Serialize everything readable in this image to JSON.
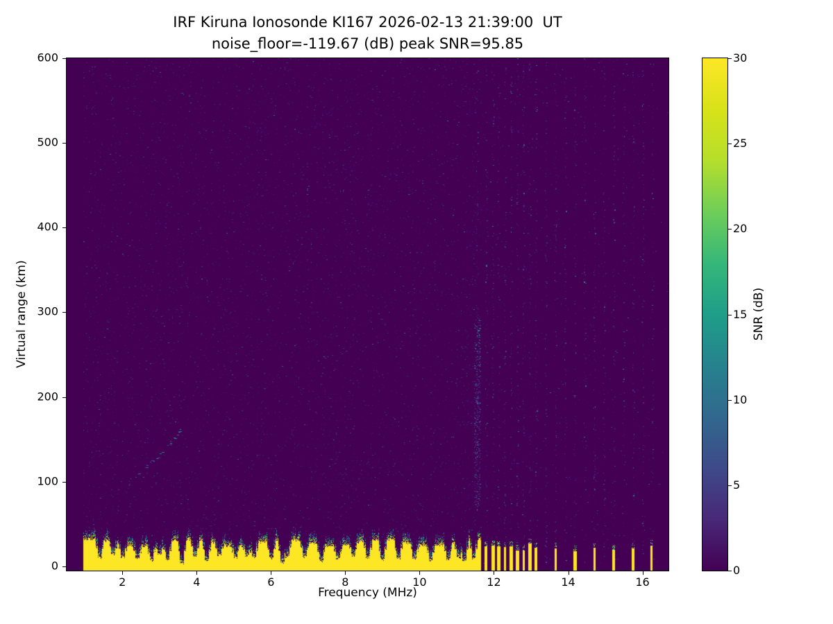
{
  "colors": {
    "background": "#ffffff",
    "text": "#000000",
    "axis": "#000000"
  },
  "chart_data": {
    "type": "heatmap",
    "title": "IRF Kiruna Ionosonde KI167 2026-02-13 21:39:00  UT",
    "subtitle": "noise_floor=-119.67 (dB) peak SNR=95.85",
    "station": "IRF Kiruna Ionosonde KI167",
    "timestamp_ut": "2026-02-13 21:39:00",
    "noise_floor_db": -119.67,
    "peak_snr_db": 95.85,
    "xlabel": "Frequency (MHz)",
    "ylabel": "Virtual range (km)",
    "xlim": [
      0.5,
      16.7
    ],
    "ylim": [
      -5,
      600
    ],
    "xticks": [
      2,
      4,
      6,
      8,
      10,
      12,
      14,
      16
    ],
    "yticks": [
      0,
      100,
      200,
      300,
      400,
      500,
      600
    ],
    "colorbar": {
      "label": "SNR (dB)",
      "ticks": [
        0,
        5,
        10,
        15,
        20,
        25,
        30
      ],
      "vmin": 0,
      "vmax": 30,
      "colormap": "viridis"
    },
    "colormap_stops": [
      "#440154",
      "#482878",
      "#3e4a89",
      "#31688e",
      "#26828e",
      "#1f9e89",
      "#35b779",
      "#6ece58",
      "#b5de2b",
      "#d8e219",
      "#fde725"
    ],
    "sweep_mhz": [
      0.95,
      16.35
    ],
    "ground_clutter": {
      "continuous_band": {
        "freq_start": 0.95,
        "freq_end": 11.62,
        "top_km_mean": 26,
        "fringe_top_km": 40
      },
      "notches": [
        [
          1.38,
          9
        ],
        [
          1.75,
          12
        ],
        [
          2.0,
          10
        ],
        [
          2.39,
          8
        ],
        [
          2.78,
          6
        ],
        [
          3.0,
          12
        ],
        [
          3.21,
          5
        ],
        [
          3.6,
          2
        ],
        [
          3.95,
          11
        ],
        [
          4.26,
          5
        ],
        [
          4.6,
          12
        ],
        [
          5.04,
          9
        ],
        [
          5.35,
          11
        ],
        [
          5.53,
          10
        ],
        [
          6.0,
          8
        ],
        [
          6.3,
          3
        ],
        [
          6.44,
          9
        ],
        [
          6.9,
          10
        ],
        [
          7.34,
          5
        ],
        [
          7.8,
          7
        ],
        [
          8.2,
          11
        ],
        [
          8.6,
          9
        ],
        [
          9.0,
          6
        ],
        [
          9.43,
          8
        ],
        [
          9.86,
          8
        ],
        [
          10.29,
          6
        ],
        [
          10.76,
          7
        ],
        [
          11.05,
          9
        ],
        [
          11.2,
          5
        ],
        [
          11.45,
          8
        ]
      ],
      "bars_mhz": [
        11.79,
        11.97,
        12.12,
        12.29,
        12.46,
        12.63,
        12.8,
        12.96,
        13.13,
        13.65,
        14.18,
        14.7,
        15.22,
        15.75,
        16.24
      ]
    },
    "interference_stripes_mhz": [
      11.55,
      11.79,
      11.97,
      12.12,
      12.29,
      12.46,
      12.63,
      12.8,
      12.96,
      13.13,
      13.39,
      13.65,
      13.92,
      14.18,
      14.44,
      14.7,
      14.96,
      15.22,
      15.48,
      15.75,
      16.01,
      16.27
    ],
    "echo_trace_mhz_km": [
      [
        2.3,
        105
      ],
      [
        2.5,
        112
      ],
      [
        2.7,
        120
      ],
      [
        2.9,
        128
      ],
      [
        3.1,
        137
      ],
      [
        3.25,
        145
      ],
      [
        3.4,
        152
      ],
      [
        3.5,
        158
      ],
      [
        3.57,
        163
      ]
    ],
    "enhanced_column": {
      "freq_mhz": 11.55,
      "range_km": [
        70,
        295
      ]
    }
  }
}
